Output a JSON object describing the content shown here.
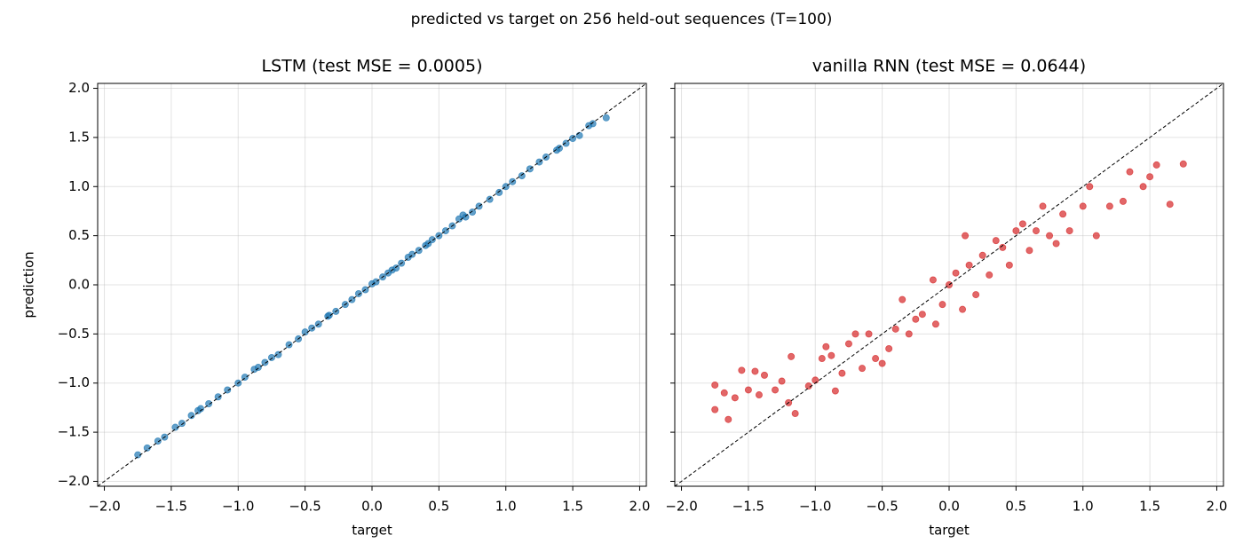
{
  "title": "predicted vs target on 256 held-out sequences  (T=100)",
  "chart_data": [
    {
      "type": "scatter",
      "title": "LSTM  (test MSE = 0.0005)",
      "xlabel": "target",
      "ylabel": "prediction",
      "color": "#1f77b4",
      "grid": true,
      "reference_line": "y=x",
      "xlim": [
        -2.05,
        2.05
      ],
      "ylim": [
        -2.05,
        2.05
      ],
      "xticks": [
        {
          "value": -2,
          "label": "−2.0"
        },
        {
          "value": -1.5,
          "label": "−1.5"
        },
        {
          "value": -1,
          "label": "−1.0"
        },
        {
          "value": -0.5,
          "label": "−0.5"
        },
        {
          "value": 0,
          "label": "0.0"
        },
        {
          "value": 0.5,
          "label": "0.5"
        },
        {
          "value": 1,
          "label": "1.0"
        },
        {
          "value": 1.5,
          "label": "1.5"
        },
        {
          "value": 2,
          "label": "2.0"
        }
      ],
      "yticks": [
        {
          "value": -2,
          "label": "−2.0"
        },
        {
          "value": -1.5,
          "label": "−1.5"
        },
        {
          "value": -1,
          "label": "−1.0"
        },
        {
          "value": -0.5,
          "label": "−0.5"
        },
        {
          "value": 0,
          "label": "0.0"
        },
        {
          "value": 0.5,
          "label": "0.5"
        },
        {
          "value": 1,
          "label": "1.0"
        },
        {
          "value": 1.5,
          "label": "1.5"
        },
        {
          "value": 2,
          "label": "2.0"
        }
      ],
      "x": [
        -1.75,
        -1.68,
        -1.6,
        -1.55,
        -1.47,
        -1.42,
        -1.35,
        -1.28,
        -1.22,
        -1.15,
        -1.08,
        -1.0,
        -0.95,
        -0.88,
        -0.8,
        -0.75,
        -0.7,
        -0.62,
        -0.55,
        -0.5,
        -0.45,
        -0.4,
        -0.33,
        -0.27,
        -0.2,
        -0.15,
        -0.1,
        -0.05,
        0.0,
        0.03,
        0.08,
        0.12,
        0.18,
        0.22,
        0.27,
        0.3,
        0.35,
        0.4,
        0.45,
        0.5,
        0.55,
        0.6,
        0.65,
        0.7,
        0.75,
        0.8,
        0.88,
        0.95,
        1.0,
        1.05,
        1.12,
        1.18,
        1.25,
        1.3,
        1.38,
        1.45,
        1.5,
        1.55,
        1.62,
        1.65,
        1.75,
        -0.85,
        0.42,
        0.68,
        -0.32,
        0.15,
        -1.3,
        1.4
      ],
      "y": [
        -1.73,
        -1.66,
        -1.59,
        -1.55,
        -1.45,
        -1.41,
        -1.33,
        -1.26,
        -1.21,
        -1.14,
        -1.07,
        -1.0,
        -0.94,
        -0.86,
        -0.79,
        -0.74,
        -0.71,
        -0.61,
        -0.55,
        -0.48,
        -0.44,
        -0.4,
        -0.32,
        -0.27,
        -0.2,
        -0.15,
        -0.09,
        -0.05,
        0.01,
        0.03,
        0.08,
        0.12,
        0.17,
        0.22,
        0.28,
        0.31,
        0.35,
        0.4,
        0.46,
        0.5,
        0.55,
        0.6,
        0.67,
        0.69,
        0.74,
        0.8,
        0.87,
        0.94,
        1.0,
        1.05,
        1.11,
        1.18,
        1.25,
        1.3,
        1.37,
        1.44,
        1.49,
        1.52,
        1.62,
        1.64,
        1.7,
        -0.84,
        0.42,
        0.71,
        -0.31,
        0.15,
        -1.28,
        1.39
      ]
    },
    {
      "type": "scatter",
      "title": "vanilla RNN  (test MSE = 0.0644)",
      "xlabel": "target",
      "color": "#d62728",
      "grid": true,
      "reference_line": "y=x",
      "xlim": [
        -2.05,
        2.05
      ],
      "ylim": [
        -2.05,
        2.05
      ],
      "xticks": [
        {
          "value": -2,
          "label": "−2.0"
        },
        {
          "value": -1.5,
          "label": "−1.5"
        },
        {
          "value": -1,
          "label": "−1.0"
        },
        {
          "value": -0.5,
          "label": "−0.5"
        },
        {
          "value": 0,
          "label": "0.0"
        },
        {
          "value": 0.5,
          "label": "0.5"
        },
        {
          "value": 1,
          "label": "1.0"
        },
        {
          "value": 1.5,
          "label": "1.5"
        },
        {
          "value": 2,
          "label": "2.0"
        }
      ],
      "yticks": [
        -2,
        -1.5,
        -1,
        -0.5,
        0,
        0.5,
        1,
        1.5,
        2
      ],
      "x": [
        -1.75,
        -1.75,
        -1.68,
        -1.65,
        -1.6,
        -1.55,
        -1.5,
        -1.45,
        -1.42,
        -1.38,
        -1.3,
        -1.25,
        -1.2,
        -1.18,
        -1.15,
        -1.05,
        -1.0,
        -0.95,
        -0.92,
        -0.88,
        -0.85,
        -0.8,
        -0.75,
        -0.7,
        -0.65,
        -0.6,
        -0.55,
        -0.5,
        -0.45,
        -0.4,
        -0.35,
        -0.3,
        -0.25,
        -0.2,
        -0.12,
        -0.1,
        -0.05,
        0.0,
        0.05,
        0.1,
        0.12,
        0.15,
        0.2,
        0.25,
        0.3,
        0.35,
        0.4,
        0.45,
        0.5,
        0.55,
        0.6,
        0.65,
        0.7,
        0.75,
        0.8,
        0.85,
        0.9,
        1.0,
        1.05,
        1.1,
        1.2,
        1.3,
        1.35,
        1.45,
        1.5,
        1.55,
        1.65,
        1.75
      ],
      "y": [
        -1.02,
        -1.27,
        -1.1,
        -1.37,
        -1.15,
        -0.87,
        -1.07,
        -0.88,
        -1.12,
        -0.92,
        -1.07,
        -0.98,
        -1.2,
        -0.73,
        -1.31,
        -1.03,
        -0.97,
        -0.75,
        -0.63,
        -0.72,
        -1.08,
        -0.9,
        -0.6,
        -0.5,
        -0.85,
        -0.5,
        -0.75,
        -0.8,
        -0.65,
        -0.45,
        -0.15,
        -0.5,
        -0.35,
        -0.3,
        0.05,
        -0.4,
        -0.2,
        0.0,
        0.12,
        -0.25,
        0.5,
        0.2,
        -0.1,
        0.3,
        0.1,
        0.45,
        0.38,
        0.2,
        0.55,
        0.62,
        0.35,
        0.55,
        0.8,
        0.5,
        0.42,
        0.72,
        0.55,
        0.8,
        1.0,
        0.5,
        0.8,
        0.85,
        1.15,
        1.0,
        1.1,
        1.22,
        0.82,
        1.23
      ]
    }
  ]
}
